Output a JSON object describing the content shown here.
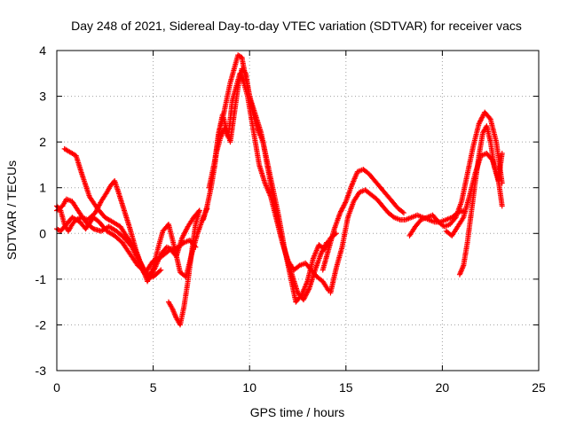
{
  "chart_data": {
    "type": "scatter",
    "title": "Day 248 of 2021, Sidereal Day-to-day VTEC variation (SDTVAR) for receiver vacs",
    "xlabel": "GPS time / hours",
    "ylabel": "SDTVAR / TECUs",
    "xlim": [
      0,
      25
    ],
    "ylim": [
      -3,
      4
    ],
    "xticks": [
      "0",
      "5",
      "10",
      "15",
      "20",
      "25"
    ],
    "yticks": [
      "-3",
      "-2",
      "-1",
      "0",
      "1",
      "2",
      "3",
      "4"
    ],
    "grid": true,
    "marker": "+",
    "color": "#ff0000",
    "series": [
      {
        "name": "track-1",
        "x": [
          0.0,
          0.2,
          0.4,
          0.6,
          0.8,
          1.0,
          1.3,
          1.6,
          2.0,
          2.3,
          2.6,
          2.8,
          3.0,
          3.2,
          3.5,
          3.8,
          4.1,
          4.3,
          4.6,
          5.0,
          5.3,
          5.6,
          5.9,
          6.2,
          6.5,
          6.8,
          7.1,
          7.4
        ],
        "y": [
          0.6,
          0.5,
          0.2,
          0.05,
          0.2,
          0.3,
          0.35,
          0.3,
          0.45,
          0.7,
          0.9,
          1.05,
          1.15,
          0.9,
          0.5,
          0.1,
          -0.35,
          -0.6,
          -0.85,
          -0.6,
          -0.55,
          -0.45,
          -0.35,
          -0.5,
          -0.1,
          0.15,
          0.35,
          0.5
        ]
      },
      {
        "name": "track-2",
        "x": [
          0.0,
          0.3,
          0.5,
          0.8,
          1.1,
          1.5,
          1.9,
          2.3,
          2.7,
          3.1,
          3.5,
          3.9,
          4.2,
          4.5,
          4.8,
          5.1,
          5.4,
          5.7,
          6.0,
          6.3,
          6.6,
          6.9,
          7.2
        ],
        "y": [
          0.5,
          0.6,
          0.75,
          0.7,
          0.5,
          0.25,
          0.1,
          0.05,
          0.15,
          0.05,
          -0.1,
          -0.3,
          -0.55,
          -0.85,
          -1.0,
          -0.75,
          -0.45,
          -0.3,
          -0.35,
          -0.3,
          -0.2,
          -0.15,
          -0.3
        ]
      },
      {
        "name": "track-3",
        "x": [
          0.4,
          0.6,
          0.8,
          1.0,
          1.3,
          1.7,
          2.1,
          2.5,
          2.9,
          3.3,
          3.6,
          4.0,
          4.4,
          4.7,
          5.0,
          5.3,
          5.5,
          5.8,
          6.1,
          6.4,
          6.7,
          7.0,
          7.3,
          7.6,
          7.8
        ],
        "y": [
          1.85,
          1.8,
          1.75,
          1.7,
          1.3,
          0.8,
          0.55,
          0.35,
          0.25,
          0.15,
          -0.05,
          -0.3,
          -0.7,
          -1.05,
          -0.75,
          -0.25,
          0.05,
          0.2,
          -0.3,
          -0.85,
          -0.95,
          -0.45,
          0.0,
          0.35,
          0.55
        ]
      },
      {
        "name": "track-4",
        "x": [
          0.0,
          0.2,
          0.5,
          0.8,
          1.2,
          1.5,
          1.9,
          2.2,
          2.6,
          3.0,
          3.4,
          3.8,
          4.2,
          4.6,
          5.0,
          5.4
        ],
        "y": [
          0.1,
          0.05,
          0.2,
          0.35,
          0.25,
          0.1,
          0.35,
          0.25,
          0.05,
          -0.05,
          -0.2,
          -0.45,
          -0.7,
          -0.85,
          -0.95,
          -0.8
        ]
      },
      {
        "name": "track-5",
        "x": [
          5.8,
          6.0,
          6.2,
          6.4,
          6.6,
          6.8,
          7.0,
          7.2,
          7.4
        ],
        "y": [
          -1.5,
          -1.65,
          -1.85,
          -2.0,
          -1.6,
          -1.05,
          -0.4,
          0.2,
          0.5
        ]
      },
      {
        "name": "track-6",
        "x": [
          7.6,
          7.8,
          8.0,
          8.2,
          8.4,
          8.6,
          8.8,
          9.0,
          9.2,
          9.4,
          9.6,
          9.8,
          10.0,
          10.2,
          10.4,
          10.7,
          11.0,
          11.3,
          11.6,
          11.9,
          12.2,
          12.5,
          12.8,
          13.1,
          13.4,
          13.7,
          14.0
        ],
        "y": [
          0.3,
          0.6,
          1.0,
          1.5,
          2.2,
          2.5,
          2.9,
          3.3,
          3.6,
          3.9,
          3.85,
          3.4,
          3.0,
          2.6,
          2.3,
          2.0,
          1.3,
          0.6,
          0.0,
          -0.5,
          -0.9,
          -1.3,
          -1.45,
          -1.2,
          -0.8,
          -0.45,
          -0.2
        ]
      },
      {
        "name": "track-7",
        "x": [
          7.9,
          8.1,
          8.3,
          8.5,
          8.7,
          8.9,
          9.1,
          9.3,
          9.5,
          9.7,
          9.9,
          10.1,
          10.3,
          10.5,
          10.8,
          11.1,
          11.4,
          11.7,
          12.0,
          12.3,
          12.6,
          12.9,
          13.2,
          13.5,
          13.8,
          14.1
        ],
        "y": [
          1.0,
          1.4,
          1.8,
          2.1,
          2.3,
          2.1,
          2.9,
          3.2,
          3.5,
          3.3,
          3.0,
          2.5,
          2.0,
          1.5,
          1.1,
          0.8,
          0.3,
          -0.2,
          -0.6,
          -0.8,
          -0.7,
          -0.65,
          -0.8,
          -0.95,
          -1.05,
          -1.25
        ]
      },
      {
        "name": "track-8",
        "x": [
          8.2,
          8.4,
          8.6,
          8.8,
          9.0,
          9.2,
          9.4,
          9.6,
          9.8,
          10.0,
          10.3,
          10.6,
          10.9,
          11.2,
          11.5,
          11.8,
          12.1,
          12.4,
          12.7,
          13.0,
          13.3,
          13.6,
          13.9,
          14.2,
          14.5
        ],
        "y": [
          1.6,
          2.2,
          2.6,
          2.3,
          2.0,
          2.6,
          3.2,
          3.6,
          3.5,
          3.0,
          2.6,
          2.2,
          1.6,
          1.0,
          0.4,
          -0.3,
          -0.9,
          -1.5,
          -1.35,
          -1.05,
          -0.55,
          -0.25,
          -0.35,
          -0.1,
          0.0
        ]
      },
      {
        "name": "track-9",
        "x": [
          13.8,
          14.1,
          14.4,
          14.7,
          15.0,
          15.3,
          15.6,
          15.9,
          16.2,
          16.5,
          16.8,
          17.1,
          17.4,
          17.7,
          18.0
        ],
        "y": [
          -0.8,
          -0.35,
          0.1,
          0.45,
          0.7,
          1.05,
          1.35,
          1.4,
          1.3,
          1.15,
          1.0,
          0.85,
          0.7,
          0.55,
          0.45
        ]
      },
      {
        "name": "track-10",
        "x": [
          14.2,
          14.5,
          14.8,
          15.1,
          15.4,
          15.7,
          16.0,
          16.3,
          16.6,
          16.9,
          17.2,
          17.5,
          17.8,
          18.1,
          18.4,
          18.7,
          19.0,
          19.3,
          19.6,
          19.9,
          20.2,
          20.5,
          20.8,
          21.1
        ],
        "y": [
          -1.3,
          -0.75,
          -0.3,
          0.35,
          0.7,
          0.9,
          0.95,
          0.85,
          0.75,
          0.6,
          0.45,
          0.35,
          0.3,
          0.3,
          0.35,
          0.4,
          0.35,
          0.3,
          0.25,
          0.25,
          0.3,
          0.35,
          0.45,
          0.5
        ]
      },
      {
        "name": "track-11",
        "x": [
          18.3,
          18.6,
          18.9,
          19.2,
          19.5,
          19.8,
          20.1,
          20.4,
          20.7,
          21.0,
          21.3,
          21.6,
          21.9,
          22.2,
          22.5,
          22.8,
          23.1
        ],
        "y": [
          -0.05,
          0.15,
          0.3,
          0.35,
          0.4,
          0.25,
          0.15,
          0.2,
          0.35,
          0.7,
          1.3,
          1.9,
          2.4,
          2.65,
          2.5,
          2.0,
          1.1
        ]
      },
      {
        "name": "track-12",
        "x": [
          20.2,
          20.5,
          20.8,
          21.1,
          21.4,
          21.7,
          22.0,
          22.3,
          22.6,
          22.9,
          23.1
        ],
        "y": [
          0.05,
          -0.05,
          0.15,
          0.35,
          0.8,
          1.3,
          1.7,
          1.75,
          1.6,
          1.2,
          0.6
        ]
      },
      {
        "name": "track-13",
        "x": [
          20.9,
          21.1,
          21.3,
          21.5,
          21.7,
          21.9,
          22.1,
          22.3,
          22.5,
          22.7,
          22.9,
          23.1
        ],
        "y": [
          -0.9,
          -0.7,
          -0.2,
          0.45,
          1.1,
          1.7,
          2.2,
          2.35,
          2.0,
          1.45,
          1.15,
          1.75
        ]
      }
    ]
  }
}
